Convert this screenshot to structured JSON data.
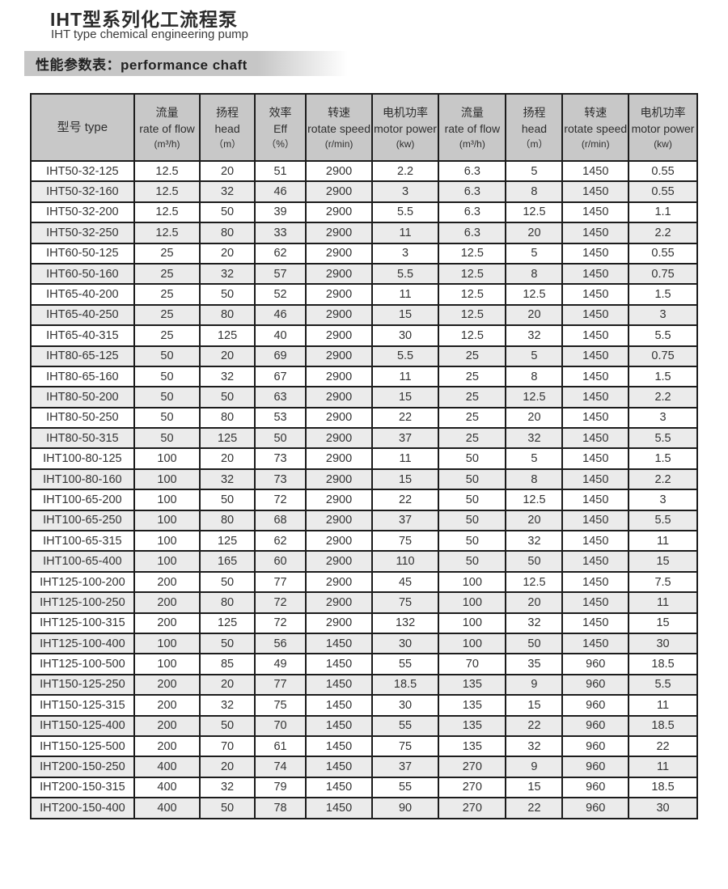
{
  "page": {
    "title_zh": "IHT型系列化工流程泵",
    "title_en": "IHT type chemical engineering pump",
    "section_label": "性能参数表：performance chaft"
  },
  "colors": {
    "header_bg": "#c8c8c8",
    "row_alt_bg": "#ebebeb",
    "border": "#1c1c1c",
    "band_bg": "#c6c6c6"
  },
  "table": {
    "columns": [
      {
        "lines": [
          "型号  type"
        ]
      },
      {
        "lines": [
          "流量",
          "rate of flow",
          "(m³/h)"
        ]
      },
      {
        "lines": [
          "扬程",
          "head",
          "（m）"
        ]
      },
      {
        "lines": [
          "效率",
          "Eff",
          "（%）"
        ]
      },
      {
        "lines": [
          "转速",
          "rotate speed",
          "(r/min)"
        ]
      },
      {
        "lines": [
          "电机功率",
          "motor power",
          "(kw)"
        ]
      },
      {
        "lines": [
          "流量",
          "rate of flow",
          "(m³/h)"
        ]
      },
      {
        "lines": [
          "扬程",
          "head",
          "（m）"
        ]
      },
      {
        "lines": [
          "转速",
          "rotate speed",
          "(r/min)"
        ]
      },
      {
        "lines": [
          "电机功率",
          "motor power",
          "(kw)"
        ]
      }
    ],
    "rows": [
      [
        "IHT50-32-125",
        "12.5",
        "20",
        "51",
        "2900",
        "2.2",
        "6.3",
        "5",
        "1450",
        "0.55"
      ],
      [
        "IHT50-32-160",
        "12.5",
        "32",
        "46",
        "2900",
        "3",
        "6.3",
        "8",
        "1450",
        "0.55"
      ],
      [
        "IHT50-32-200",
        "12.5",
        "50",
        "39",
        "2900",
        "5.5",
        "6.3",
        "12.5",
        "1450",
        "1.1"
      ],
      [
        "IHT50-32-250",
        "12.5",
        "80",
        "33",
        "2900",
        "11",
        "6.3",
        "20",
        "1450",
        "2.2"
      ],
      [
        "IHT60-50-125",
        "25",
        "20",
        "62",
        "2900",
        "3",
        "12.5",
        "5",
        "1450",
        "0.55"
      ],
      [
        "IHT60-50-160",
        "25",
        "32",
        "57",
        "2900",
        "5.5",
        "12.5",
        "8",
        "1450",
        "0.75"
      ],
      [
        "IHT65-40-200",
        "25",
        "50",
        "52",
        "2900",
        "11",
        "12.5",
        "12.5",
        "1450",
        "1.5"
      ],
      [
        "IHT65-40-250",
        "25",
        "80",
        "46",
        "2900",
        "15",
        "12.5",
        "20",
        "1450",
        "3"
      ],
      [
        "IHT65-40-315",
        "25",
        "125",
        "40",
        "2900",
        "30",
        "12.5",
        "32",
        "1450",
        "5.5"
      ],
      [
        "IHT80-65-125",
        "50",
        "20",
        "69",
        "2900",
        "5.5",
        "25",
        "5",
        "1450",
        "0.75"
      ],
      [
        "IHT80-65-160",
        "50",
        "32",
        "67",
        "2900",
        "11",
        "25",
        "8",
        "1450",
        "1.5"
      ],
      [
        "IHT80-50-200",
        "50",
        "50",
        "63",
        "2900",
        "15",
        "25",
        "12.5",
        "1450",
        "2.2"
      ],
      [
        "IHT80-50-250",
        "50",
        "80",
        "53",
        "2900",
        "22",
        "25",
        "20",
        "1450",
        "3"
      ],
      [
        "IHT80-50-315",
        "50",
        "125",
        "50",
        "2900",
        "37",
        "25",
        "32",
        "1450",
        "5.5"
      ],
      [
        "IHT100-80-125",
        "100",
        "20",
        "73",
        "2900",
        "11",
        "50",
        "5",
        "1450",
        "1.5"
      ],
      [
        "IHT100-80-160",
        "100",
        "32",
        "73",
        "2900",
        "15",
        "50",
        "8",
        "1450",
        "2.2"
      ],
      [
        "IHT100-65-200",
        "100",
        "50",
        "72",
        "2900",
        "22",
        "50",
        "12.5",
        "1450",
        "3"
      ],
      [
        "IHT100-65-250",
        "100",
        "80",
        "68",
        "2900",
        "37",
        "50",
        "20",
        "1450",
        "5.5"
      ],
      [
        "IHT100-65-315",
        "100",
        "125",
        "62",
        "2900",
        "75",
        "50",
        "32",
        "1450",
        "11"
      ],
      [
        "IHT100-65-400",
        "100",
        "165",
        "60",
        "2900",
        "110",
        "50",
        "50",
        "1450",
        "15"
      ],
      [
        "IHT125-100-200",
        "200",
        "50",
        "77",
        "2900",
        "45",
        "100",
        "12.5",
        "1450",
        "7.5"
      ],
      [
        "IHT125-100-250",
        "200",
        "80",
        "72",
        "2900",
        "75",
        "100",
        "20",
        "1450",
        "11"
      ],
      [
        "IHT125-100-315",
        "200",
        "125",
        "72",
        "2900",
        "132",
        "100",
        "32",
        "1450",
        "15"
      ],
      [
        "IHT125-100-400",
        "100",
        "50",
        "56",
        "1450",
        "30",
        "100",
        "50",
        "1450",
        "30"
      ],
      [
        "IHT125-100-500",
        "100",
        "85",
        "49",
        "1450",
        "55",
        "70",
        "35",
        "960",
        "18.5"
      ],
      [
        "IHT150-125-250",
        "200",
        "20",
        "77",
        "1450",
        "18.5",
        "135",
        "9",
        "960",
        "5.5"
      ],
      [
        "IHT150-125-315",
        "200",
        "32",
        "75",
        "1450",
        "30",
        "135",
        "15",
        "960",
        "11"
      ],
      [
        "IHT150-125-400",
        "200",
        "50",
        "70",
        "1450",
        "55",
        "135",
        "22",
        "960",
        "18.5"
      ],
      [
        "IHT150-125-500",
        "200",
        "70",
        "61",
        "1450",
        "75",
        "135",
        "32",
        "960",
        "22"
      ],
      [
        "IHT200-150-250",
        "400",
        "20",
        "74",
        "1450",
        "37",
        "270",
        "9",
        "960",
        "11"
      ],
      [
        "IHT200-150-315",
        "400",
        "32",
        "79",
        "1450",
        "55",
        "270",
        "15",
        "960",
        "18.5"
      ],
      [
        "IHT200-150-400",
        "400",
        "50",
        "78",
        "1450",
        "90",
        "270",
        "22",
        "960",
        "30"
      ]
    ]
  }
}
